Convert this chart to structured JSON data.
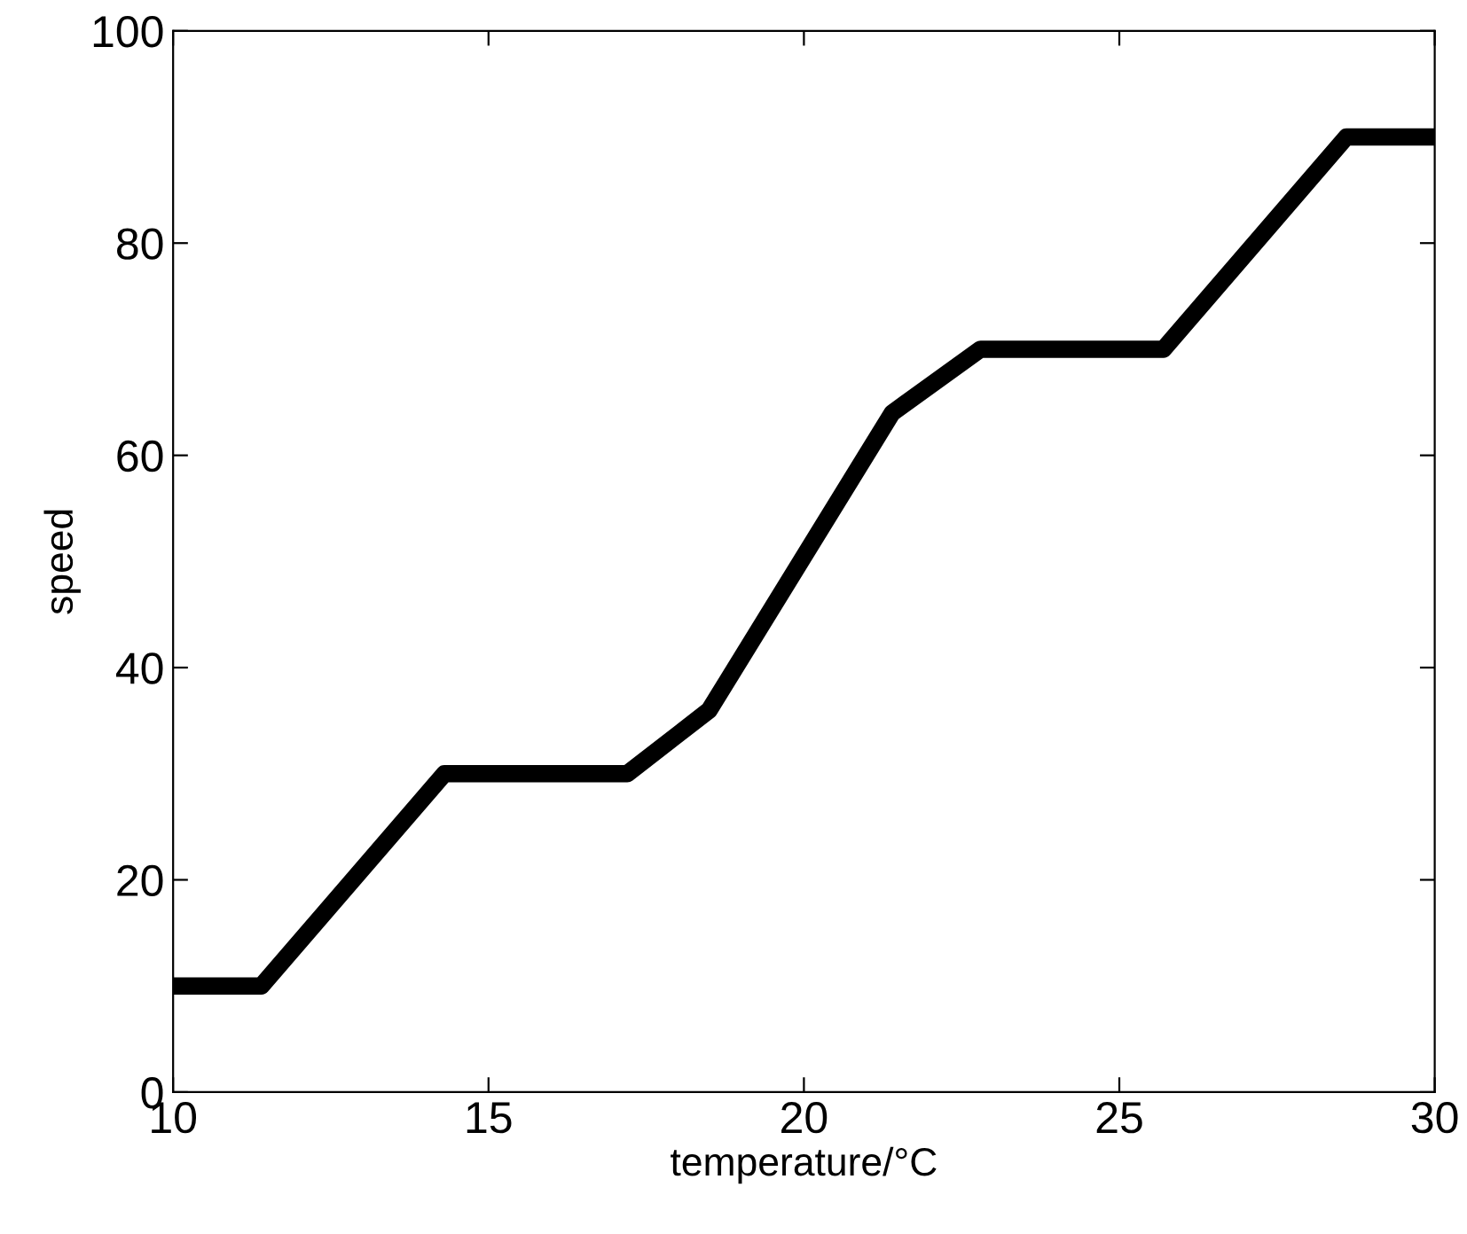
{
  "chart_data": {
    "type": "line",
    "xlabel": "temperature/°C",
    "ylabel": "speed",
    "x": [
      10,
      11.4,
      14.3,
      17.2,
      18.5,
      21.4,
      22.8,
      25.7,
      28.6,
      30
    ],
    "series": [
      {
        "color": "#000000",
        "values": [
          10,
          10,
          30,
          30,
          36,
          64,
          70,
          70,
          90,
          90
        ]
      }
    ],
    "xlim": [
      10,
      30
    ],
    "xticks": [
      10,
      15,
      20,
      25,
      30
    ],
    "ylim": [
      0,
      100
    ],
    "yticks": [
      0,
      20,
      40,
      60,
      80,
      100
    ],
    "grid": false,
    "legend": false,
    "marker": "none",
    "line_style": "solid"
  }
}
